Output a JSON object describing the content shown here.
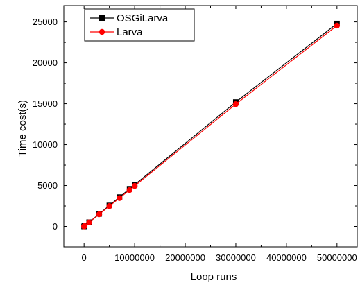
{
  "chart_data": {
    "type": "line",
    "title": "",
    "xlabel": "Loop runs",
    "ylabel": "Time cost(s)",
    "xlim": [
      -4000000,
      54000000
    ],
    "ylim": [
      -2500,
      27000
    ],
    "xticks": [
      0,
      10000000,
      20000000,
      30000000,
      40000000,
      50000000
    ],
    "xtick_labels": [
      "0",
      "10000000",
      "20000000",
      "30000000",
      "40000000",
      "50000000"
    ],
    "yticks": [
      0,
      5000,
      10000,
      15000,
      20000,
      25000
    ],
    "ytick_labels": [
      "0",
      "5000",
      "10000",
      "15000",
      "20000",
      "25000"
    ],
    "grid": false,
    "legend_position": "top-left",
    "series": [
      {
        "name": "OSGiLarva",
        "color": "#000000",
        "marker": "square",
        "x": [
          0,
          100000,
          1000000,
          3000000,
          5000000,
          7000000,
          9000000,
          10000000,
          30000000,
          50000000
        ],
        "y": [
          0,
          60,
          510,
          1530,
          2560,
          3580,
          4600,
          5100,
          15200,
          24800
        ]
      },
      {
        "name": "Larva",
        "color": "#ff0000",
        "marker": "circle",
        "x": [
          0,
          100000,
          1000000,
          3000000,
          5000000,
          7000000,
          9000000,
          10000000,
          30000000,
          50000000
        ],
        "y": [
          0,
          50,
          490,
          1480,
          2480,
          3460,
          4450,
          4950,
          14950,
          24550
        ]
      }
    ]
  }
}
